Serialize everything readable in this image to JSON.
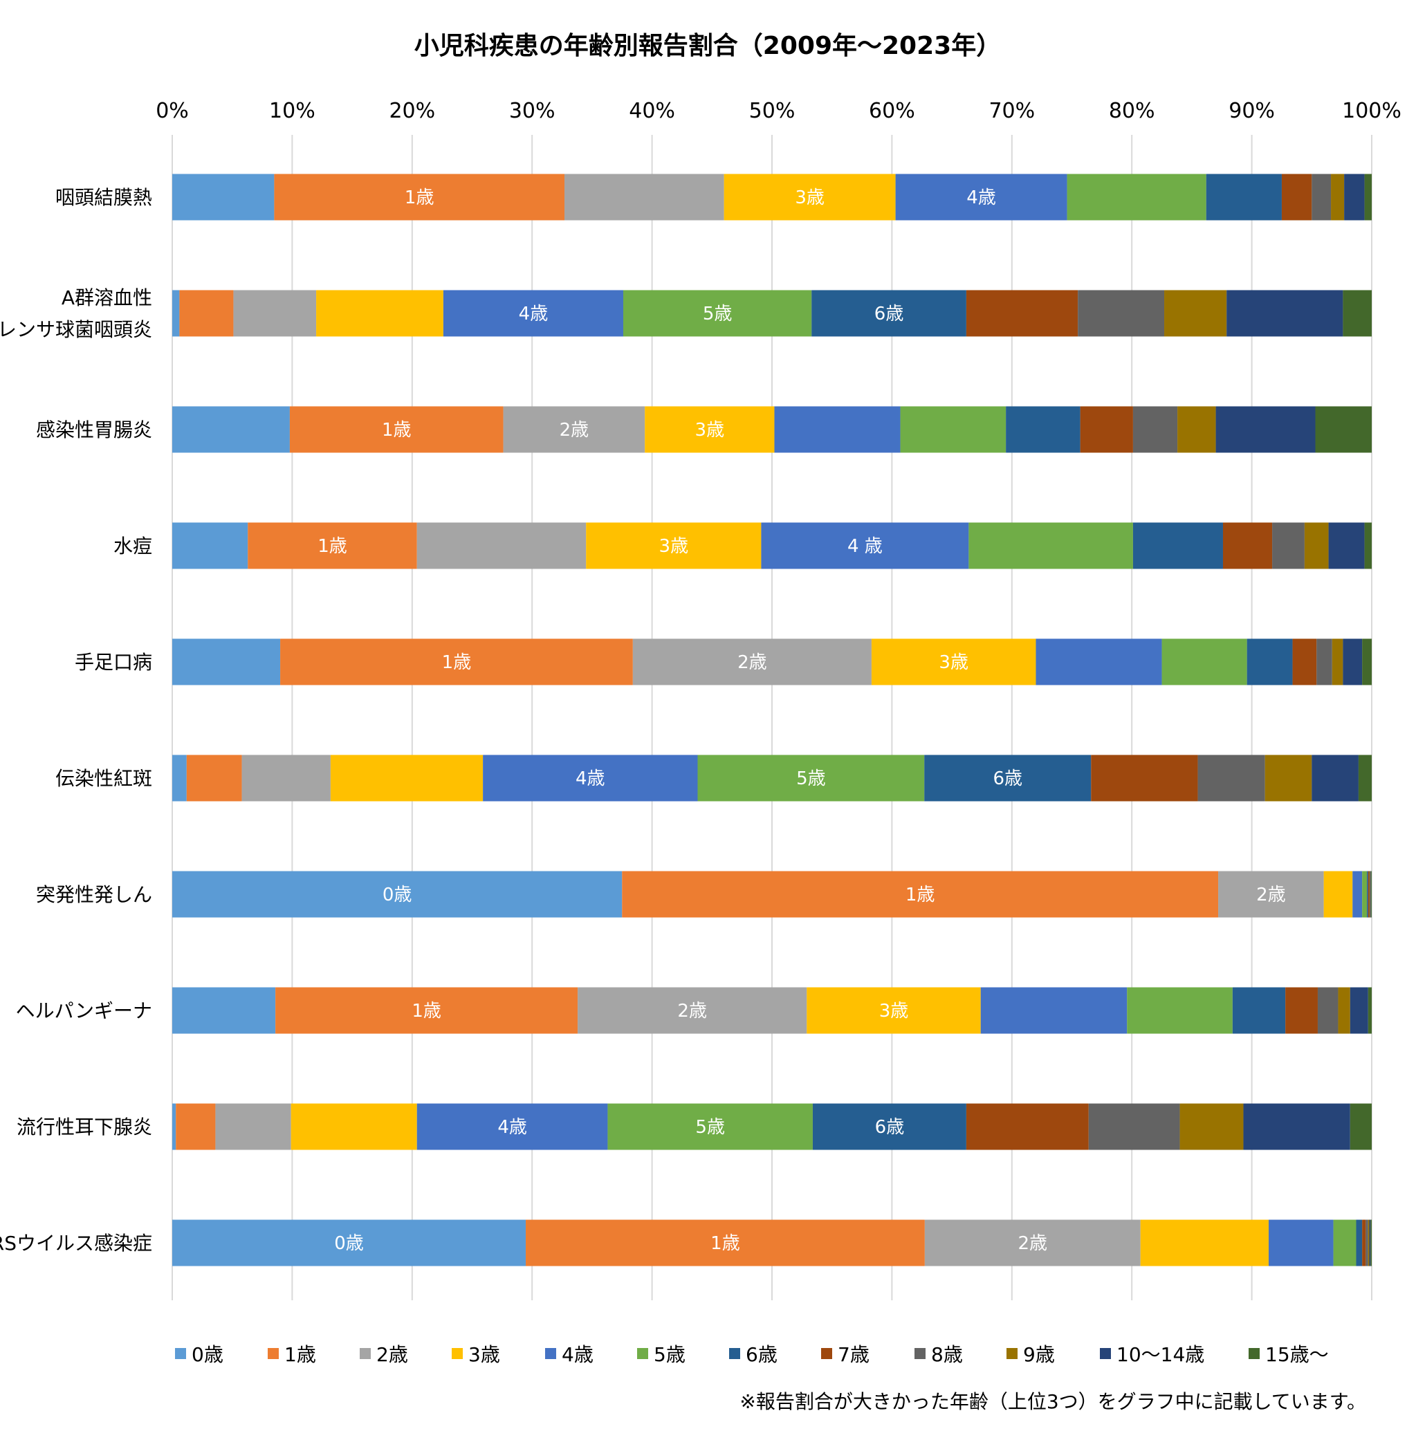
{
  "chart_data": {
    "type": "bar",
    "orientation": "horizontal",
    "stacked": "percent",
    "title": "小児科疾患の年齢別報告割合（2009年～2023年）",
    "note": "※報告割合が大きかった年齢（上位3つ）をグラフ中に記載しています。",
    "x_ticks": [
      "0%",
      "10%",
      "20%",
      "30%",
      "40%",
      "50%",
      "60%",
      "70%",
      "80%",
      "90%",
      "100%"
    ],
    "xlim": [
      0,
      100
    ],
    "grid": "vertical",
    "legend_position": "bottom",
    "categories": [
      [
        "咽頭結膜熱"
      ],
      [
        "A群溶血性",
        "レンサ球菌咽頭炎"
      ],
      [
        "感染性胃腸炎"
      ],
      [
        "水痘"
      ],
      [
        "手足口病"
      ],
      [
        "伝染性紅斑"
      ],
      [
        "突発性発しん"
      ],
      [
        "ヘルパンギーナ"
      ],
      [
        "流行性耳下腺炎"
      ],
      [
        "RSウイルス感染症"
      ]
    ],
    "series": [
      {
        "name": "0歳",
        "color": "#5B9BD5",
        "values": [
          8.5,
          0.6,
          9.8,
          6.3,
          9.0,
          1.2,
          37.5,
          8.6,
          0.3,
          29.5
        ]
      },
      {
        "name": "1歳",
        "color": "#ED7D31",
        "values": [
          24.2,
          4.5,
          17.8,
          14.1,
          29.4,
          4.6,
          49.7,
          25.2,
          3.3,
          33.3
        ]
      },
      {
        "name": "2歳",
        "color": "#A5A5A5",
        "values": [
          13.3,
          6.9,
          11.8,
          14.1,
          19.9,
          7.4,
          8.8,
          19.1,
          6.3,
          18.0
        ]
      },
      {
        "name": "3歳",
        "color": "#FFC000",
        "values": [
          14.3,
          10.6,
          10.8,
          14.6,
          13.7,
          12.7,
          2.4,
          14.5,
          10.5,
          10.7
        ]
      },
      {
        "name": "4歳",
        "color": "#4472C4",
        "values": [
          14.3,
          15.0,
          10.5,
          17.3,
          10.5,
          17.9,
          0.8,
          12.2,
          15.9,
          5.4
        ]
      },
      {
        "name": "5歳",
        "color": "#70AD47",
        "values": [
          11.6,
          15.7,
          8.8,
          13.7,
          7.1,
          18.9,
          0.4,
          8.8,
          17.1,
          1.9
        ]
      },
      {
        "name": "6歳",
        "color": "#255E91",
        "values": [
          6.3,
          12.9,
          6.2,
          7.5,
          3.8,
          13.9,
          0.1,
          4.4,
          12.8,
          0.5
        ]
      },
      {
        "name": "7歳",
        "color": "#9E480E",
        "values": [
          2.5,
          9.3,
          4.4,
          4.1,
          2.0,
          8.9,
          0.1,
          2.7,
          10.2,
          0.3
        ]
      },
      {
        "name": "8歳",
        "color": "#636363",
        "values": [
          1.6,
          7.2,
          3.7,
          2.7,
          1.3,
          5.6,
          0.05,
          1.7,
          7.6,
          0.2
        ]
      },
      {
        "name": "9歳",
        "color": "#997300",
        "values": [
          1.1,
          5.2,
          3.2,
          2.0,
          0.9,
          3.9,
          0.05,
          1.0,
          5.3,
          0.1
        ]
      },
      {
        "name": "10～14歳",
        "color": "#264478",
        "values": [
          1.7,
          9.7,
          8.3,
          3.0,
          1.6,
          3.9,
          0.05,
          1.5,
          8.9,
          0.1
        ]
      },
      {
        "name": "15歳～",
        "color": "#43682B",
        "values": [
          0.6,
          2.4,
          4.7,
          0.6,
          0.8,
          1.1,
          0.05,
          0.3,
          1.8,
          0.1
        ]
      }
    ],
    "segment_labels": [
      [
        null,
        "1歳",
        null,
        "3歳",
        "4歳",
        null,
        null,
        null,
        null,
        null,
        null,
        null
      ],
      [
        null,
        null,
        null,
        null,
        "4歳",
        "5歳",
        "6歳",
        null,
        null,
        null,
        null,
        null
      ],
      [
        null,
        "1歳",
        "2歳",
        "3歳",
        null,
        null,
        null,
        null,
        null,
        null,
        null,
        null
      ],
      [
        null,
        "1歳",
        null,
        "3歳",
        "4 歳",
        null,
        null,
        null,
        null,
        null,
        null,
        null
      ],
      [
        null,
        "1歳",
        "2歳",
        "3歳",
        null,
        null,
        null,
        null,
        null,
        null,
        null,
        null
      ],
      [
        null,
        null,
        null,
        null,
        "4歳",
        "5歳",
        "6歳",
        null,
        null,
        null,
        null,
        null
      ],
      [
        "0歳",
        "1歳",
        "2歳",
        null,
        null,
        null,
        null,
        null,
        null,
        null,
        null,
        null
      ],
      [
        null,
        "1歳",
        "2歳",
        "3歳",
        null,
        null,
        null,
        null,
        null,
        null,
        null,
        null
      ],
      [
        null,
        null,
        null,
        null,
        "4歳",
        "5歳",
        "6歳",
        null,
        null,
        null,
        null,
        null
      ],
      [
        "0歳",
        "1歳",
        "2歳",
        null,
        null,
        null,
        null,
        null,
        null,
        null,
        null,
        null
      ]
    ]
  }
}
